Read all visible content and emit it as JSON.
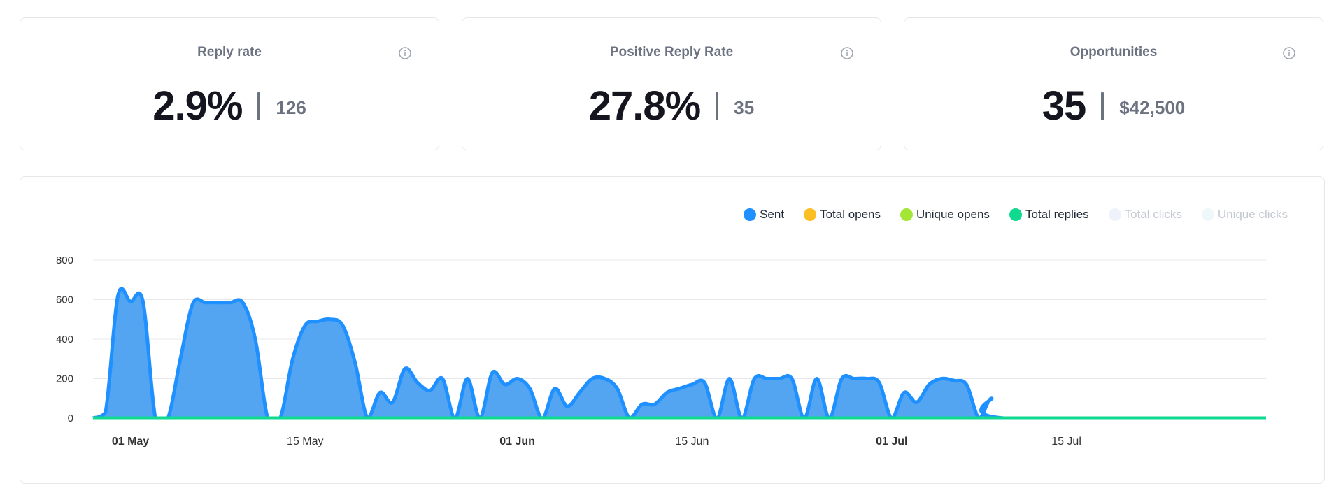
{
  "cards": [
    {
      "title": "Reply rate",
      "value": "2.9%",
      "sub": "126"
    },
    {
      "title": "Positive Reply Rate",
      "value": "27.8%",
      "sub": "35"
    },
    {
      "title": "Opportunities",
      "value": "35",
      "sub": "$42,500"
    }
  ],
  "chart_data": {
    "type": "area",
    "legend_position": "top-right",
    "grid": true,
    "ylim": [
      0,
      800
    ],
    "y_ticks": [
      0,
      200,
      400,
      600,
      800
    ],
    "x_ticks": [
      {
        "date": "2024-05-01",
        "label": "01 May",
        "bold": true
      },
      {
        "date": "2024-05-15",
        "label": "15 May",
        "bold": false
      },
      {
        "date": "2024-06-01",
        "label": "01 Jun",
        "bold": true
      },
      {
        "date": "2024-06-15",
        "label": "15 Jun",
        "bold": false
      },
      {
        "date": "2024-07-01",
        "label": "01 Jul",
        "bold": true
      },
      {
        "date": "2024-07-15",
        "label": "15 Jul",
        "bold": false
      }
    ],
    "xlim": [
      "2024-04-28",
      "2024-07-31"
    ],
    "series": [
      {
        "name": "Sent",
        "color": "#1e90ff",
        "visible": true,
        "points": [
          [
            "2024-04-28",
            0
          ],
          [
            "2024-04-29",
            30
          ],
          [
            "2024-04-30",
            620
          ],
          [
            "2024-05-01",
            590
          ],
          [
            "2024-05-02",
            590
          ],
          [
            "2024-05-03",
            0
          ],
          [
            "2024-05-04",
            0
          ],
          [
            "2024-05-05",
            300
          ],
          [
            "2024-05-06",
            580
          ],
          [
            "2024-05-07",
            585
          ],
          [
            "2024-05-08",
            585
          ],
          [
            "2024-05-09",
            585
          ],
          [
            "2024-05-10",
            585
          ],
          [
            "2024-05-11",
            400
          ],
          [
            "2024-05-12",
            0
          ],
          [
            "2024-05-13",
            0
          ],
          [
            "2024-05-14",
            300
          ],
          [
            "2024-05-15",
            470
          ],
          [
            "2024-05-16",
            490
          ],
          [
            "2024-05-17",
            500
          ],
          [
            "2024-05-18",
            470
          ],
          [
            "2024-05-19",
            280
          ],
          [
            "2024-05-20",
            0
          ],
          [
            "2024-05-21",
            130
          ],
          [
            "2024-05-22",
            80
          ],
          [
            "2024-05-23",
            250
          ],
          [
            "2024-05-24",
            180
          ],
          [
            "2024-05-25",
            140
          ],
          [
            "2024-05-26",
            200
          ],
          [
            "2024-05-27",
            0
          ],
          [
            "2024-05-28",
            200
          ],
          [
            "2024-05-29",
            0
          ],
          [
            "2024-05-30",
            230
          ],
          [
            "2024-05-31",
            170
          ],
          [
            "2024-06-01",
            200
          ],
          [
            "2024-06-02",
            150
          ],
          [
            "2024-06-03",
            0
          ],
          [
            "2024-06-04",
            150
          ],
          [
            "2024-06-05",
            60
          ],
          [
            "2024-06-06",
            130
          ],
          [
            "2024-06-07",
            200
          ],
          [
            "2024-06-08",
            200
          ],
          [
            "2024-06-09",
            150
          ],
          [
            "2024-06-10",
            0
          ],
          [
            "2024-06-11",
            70
          ],
          [
            "2024-06-12",
            70
          ],
          [
            "2024-06-13",
            130
          ],
          [
            "2024-06-14",
            150
          ],
          [
            "2024-06-15",
            170
          ],
          [
            "2024-06-16",
            180
          ],
          [
            "2024-06-17",
            0
          ],
          [
            "2024-06-18",
            200
          ],
          [
            "2024-06-19",
            0
          ],
          [
            "2024-06-20",
            200
          ],
          [
            "2024-06-21",
            200
          ],
          [
            "2024-06-22",
            200
          ],
          [
            "2024-06-23",
            200
          ],
          [
            "2024-06-24",
            0
          ],
          [
            "2024-06-25",
            200
          ],
          [
            "2024-06-26",
            0
          ],
          [
            "2024-06-27",
            200
          ],
          [
            "2024-06-28",
            200
          ],
          [
            "2024-06-29",
            200
          ],
          [
            "2024-06-30",
            180
          ],
          [
            "2024-07-01",
            0
          ],
          [
            "2024-07-02",
            130
          ],
          [
            "2024-07-03",
            80
          ],
          [
            "2024-07-04",
            170
          ],
          [
            "2024-07-05",
            200
          ],
          [
            "2024-07-06",
            190
          ],
          [
            "2024-07-07",
            170
          ],
          [
            "2024-07-08",
            0
          ],
          [
            "2024-07-09",
            100
          ],
          [
            "2024-07-10",
            0
          ],
          [
            "2024-07-31",
            0
          ]
        ]
      },
      {
        "name": "Total opens",
        "color": "#fbbf24",
        "visible": true,
        "points": [
          [
            "2024-04-28",
            0
          ],
          [
            "2024-07-31",
            0
          ]
        ]
      },
      {
        "name": "Unique opens",
        "color": "#a3e635",
        "visible": true,
        "points": [
          [
            "2024-04-28",
            0
          ],
          [
            "2024-07-31",
            0
          ]
        ]
      },
      {
        "name": "Total replies",
        "color": "#10d990",
        "visible": true,
        "points": [
          [
            "2024-04-28",
            0
          ],
          [
            "2024-07-31",
            0
          ]
        ]
      },
      {
        "name": "Total clicks",
        "color": "#eef3fb",
        "visible": false,
        "points": []
      },
      {
        "name": "Unique clicks",
        "color": "#eef8fb",
        "visible": false,
        "points": []
      }
    ]
  }
}
